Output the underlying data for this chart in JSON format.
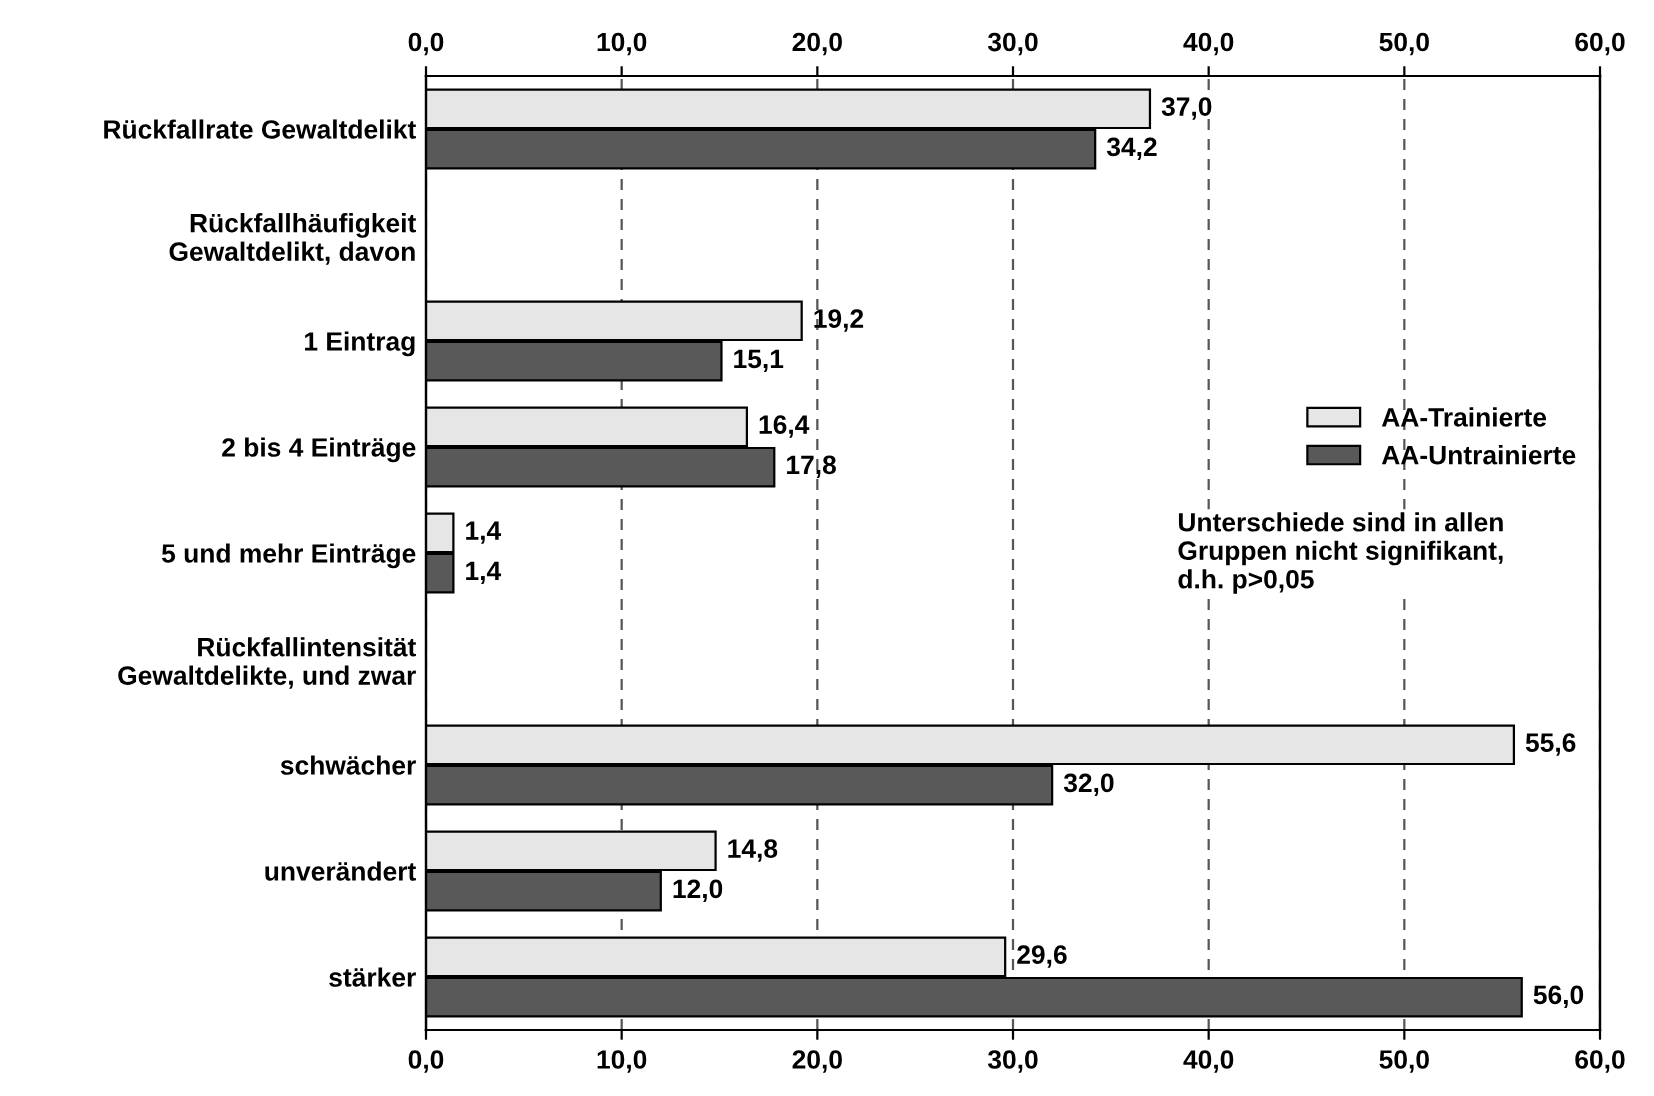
{
  "chart_data": {
    "type": "bar",
    "orientation": "horizontal",
    "categories": [
      "Rückfallrate Gewaltdelikt",
      "Rückfallhäufigkeit\nGewaltdelikt, davon",
      "1 Eintrag",
      "2 bis 4 Einträge",
      "5 und mehr Einträge",
      "Rückfallintensität\nGewaltdelikte, und zwar",
      "schwächer",
      "unverändert",
      "stärker"
    ],
    "series": [
      {
        "name": "AA-Trainierte",
        "color": "#e6e6e6",
        "values": [
          37.0,
          null,
          19.2,
          16.4,
          1.4,
          null,
          55.6,
          14.8,
          29.6
        ],
        "value_labels": [
          "37,0",
          null,
          "19,2",
          "16,4",
          "1,4",
          null,
          "55,6",
          "14,8",
          "29,6"
        ]
      },
      {
        "name": "AA-Untrainierte",
        "color": "#595959",
        "values": [
          34.2,
          null,
          15.1,
          17.8,
          1.4,
          null,
          32.0,
          12.0,
          56.0
        ],
        "value_labels": [
          "34,2",
          null,
          "15,1",
          "17,8",
          "1,4",
          null,
          "32,0",
          "12,0",
          "56,0"
        ]
      }
    ],
    "xlim": [
      0,
      60
    ],
    "xticks": [
      {
        "value": 0,
        "label": "0,0"
      },
      {
        "value": 10,
        "label": "10,0"
      },
      {
        "value": 20,
        "label": "20,0"
      },
      {
        "value": 30,
        "label": "30,0"
      },
      {
        "value": 40,
        "label": "40,0"
      },
      {
        "value": 50,
        "label": "50,0"
      },
      {
        "value": 60,
        "label": "60,0"
      }
    ],
    "x2lim": [
      0,
      60
    ],
    "x2ticks": [
      {
        "value": 0,
        "label": "0,0"
      },
      {
        "value": 10,
        "label": "10,0"
      },
      {
        "value": 20,
        "label": "20,0"
      },
      {
        "value": 30,
        "label": "30,0"
      },
      {
        "value": 40,
        "label": "40,0"
      },
      {
        "value": 50,
        "label": "50,0"
      },
      {
        "value": 60,
        "label": "60,0"
      }
    ],
    "grid": "x",
    "legend": "right",
    "annotations": [
      "Unterschiede sind in allen\nGruppen nicht signifikant,\nd.h. p>0,05"
    ]
  }
}
